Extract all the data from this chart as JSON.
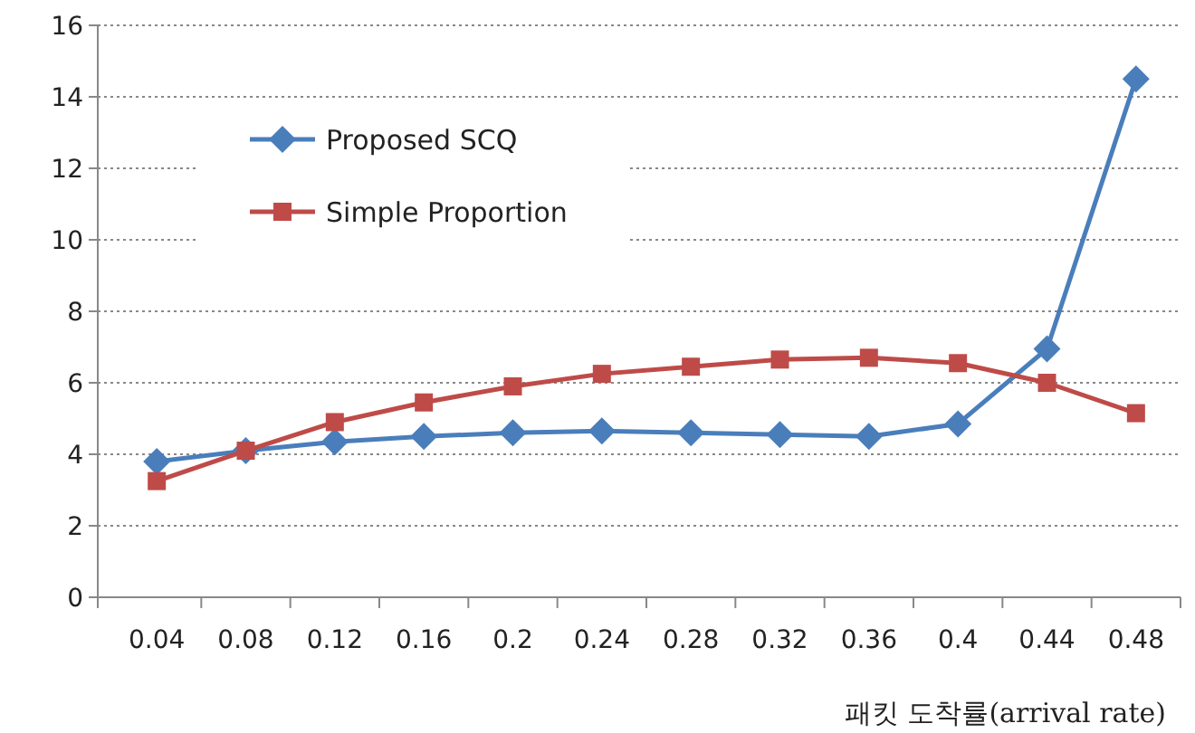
{
  "chart_data": {
    "type": "line",
    "xlabel": "패킷 도착률(arrival rate)",
    "categories": [
      "0.04",
      "0.08",
      "0.12",
      "0.16",
      "0.2",
      "0.24",
      "0.28",
      "0.32",
      "0.36",
      "0.4",
      "0.44",
      "0.48"
    ],
    "series": [
      {
        "name": "Proposed SCQ",
        "color": "#4a7ebb",
        "marker": "diamond",
        "values": [
          3.8,
          4.1,
          4.35,
          4.5,
          4.6,
          4.65,
          4.6,
          4.55,
          4.5,
          4.85,
          6.95,
          14.5
        ]
      },
      {
        "name": "Simple Proportion",
        "color": "#be4b48",
        "marker": "square",
        "values": [
          3.25,
          4.1,
          4.9,
          5.45,
          5.9,
          6.25,
          6.45,
          6.65,
          6.7,
          6.55,
          6.0,
          5.15
        ]
      }
    ],
    "ylim": [
      0,
      16
    ],
    "yticks": [
      0,
      2,
      4,
      6,
      8,
      10,
      12,
      14,
      16
    ],
    "grid": "y",
    "legend": "top left"
  }
}
